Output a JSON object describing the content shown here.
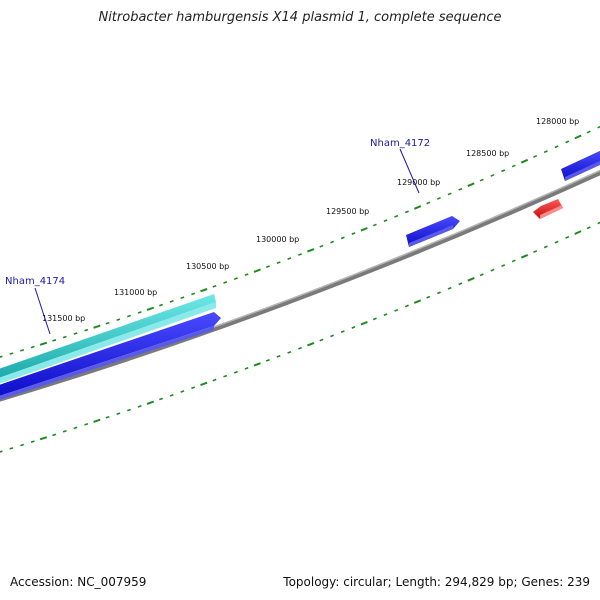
{
  "title": "Nitrobacter hamburgensis X14 plasmid 1, complete sequence",
  "footer": {
    "accession": "Accession: NC_007959",
    "summary": "Topology: circular; Length: 294,829 bp; Genes: 239"
  },
  "ruler_labels": [
    "128000 bp",
    "128500 bp",
    "129000 bp",
    "129500 bp",
    "130000 bp",
    "130500 bp",
    "131000 bp",
    "131500 bp"
  ],
  "gene_labels": {
    "nham_4172": "Nham_4172",
    "nham_4174": "Nham_4174"
  },
  "colors": {
    "backbone": "#8a8a8a",
    "tick": "#1d8a1d",
    "gene_blue": "#1a1ae6",
    "gene_cyan": "#28c8c8",
    "gene_red": "#e61a1a"
  }
}
